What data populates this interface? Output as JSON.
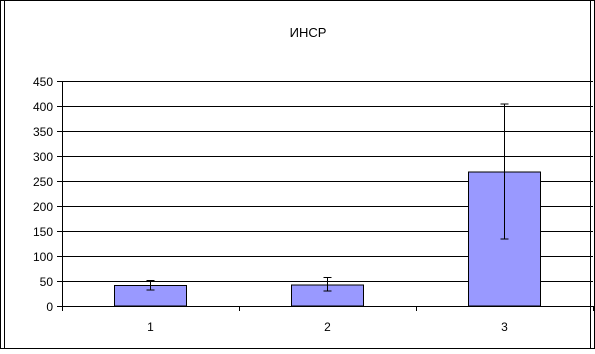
{
  "chart_data": {
    "type": "bar",
    "title": "ИНСР",
    "xlabel": "",
    "ylabel": "",
    "categories": [
      "1",
      "2",
      "3"
    ],
    "values": [
      41,
      42,
      268
    ],
    "error_bars": [
      {
        "low": 32,
        "high": 51
      },
      {
        "low": 30,
        "high": 57
      },
      {
        "low": 134,
        "high": 404
      }
    ],
    "ylim": [
      0,
      450
    ],
    "yticks": [
      "0",
      "50",
      "100",
      "150",
      "200",
      "250",
      "300",
      "350",
      "400",
      "450"
    ],
    "grid": true,
    "legend": "none",
    "colors": {
      "bar": "#9999ff",
      "bar_stroke": "#000000",
      "grid": "#000000"
    }
  }
}
